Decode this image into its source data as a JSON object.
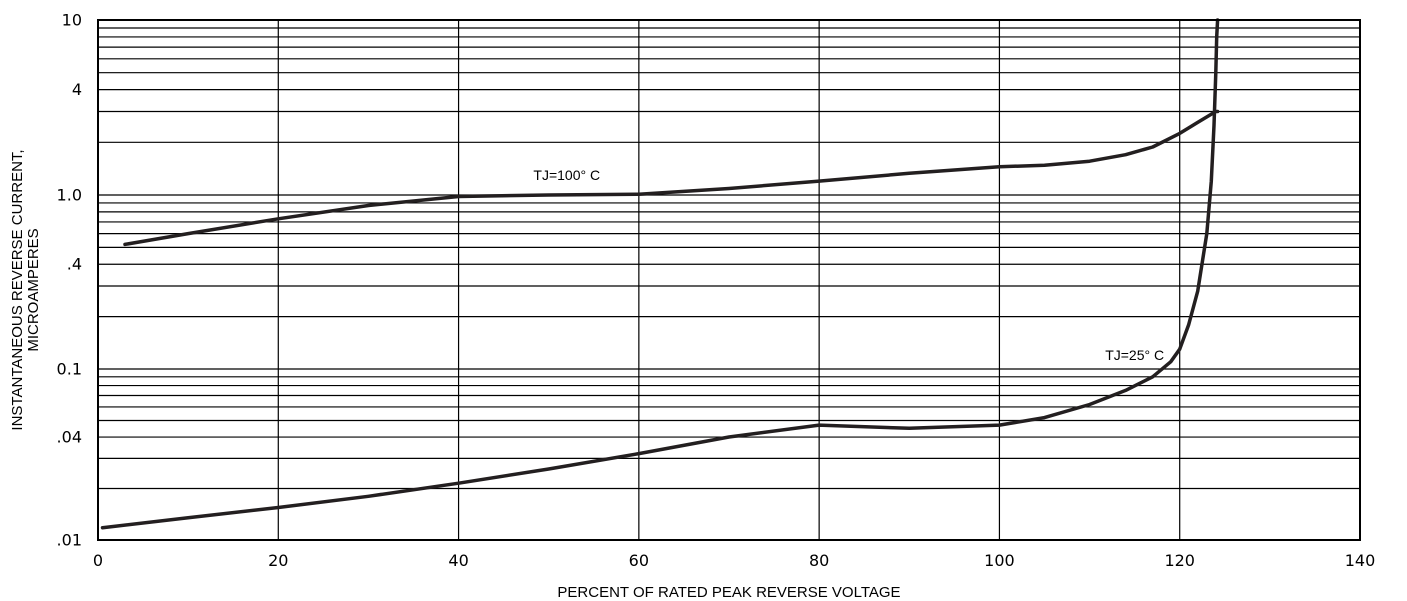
{
  "chart_data": {
    "type": "line",
    "xlabel": "PERCENT OF RATED PEAK REVERSE VOLTAGE",
    "ylabel_lines": [
      "INSTANTANEOUS REVERSE CURRENT,",
      "MICROAMPERES"
    ],
    "xlim": [
      0,
      140
    ],
    "ylim": [
      0.01,
      10
    ],
    "y_scale": "log",
    "grid": true,
    "x_ticks": [
      0,
      20,
      40,
      60,
      80,
      100,
      120,
      140
    ],
    "x_tick_labels": [
      "0",
      "20",
      "40",
      "60",
      "80",
      "100",
      "120",
      "140"
    ],
    "y_ticks": [
      10,
      4,
      1,
      0.4,
      0.1,
      0.04,
      0.01
    ],
    "y_tick_labels": [
      "10",
      "4",
      "1.0",
      ".4",
      "0.1",
      ".04",
      ".01"
    ],
    "series": [
      {
        "name": "TJ=100° C",
        "color": "#231f20",
        "x": [
          3,
          10,
          20,
          30,
          40,
          50,
          60,
          70,
          80,
          90,
          100,
          105,
          110,
          114,
          117,
          120,
          122,
          124,
          124.2
        ],
        "y": [
          0.52,
          0.6,
          0.73,
          0.87,
          0.98,
          1.0,
          1.01,
          1.09,
          1.2,
          1.33,
          1.45,
          1.48,
          1.56,
          1.7,
          1.88,
          2.25,
          2.6,
          3.0,
          3.0
        ]
      },
      {
        "name": "TJ=25° C",
        "color": "#231f20",
        "x": [
          0.5,
          10,
          20,
          30,
          40,
          50,
          60,
          70,
          80,
          90,
          100,
          105,
          110,
          114,
          117,
          119,
          120,
          121,
          122,
          123,
          123.5,
          123.8,
          124,
          124.1,
          124.2
        ],
        "y": [
          0.0118,
          0.0135,
          0.0155,
          0.018,
          0.0215,
          0.026,
          0.032,
          0.04,
          0.047,
          0.045,
          0.047,
          0.052,
          0.062,
          0.075,
          0.09,
          0.11,
          0.13,
          0.18,
          0.28,
          0.6,
          1.2,
          2.5,
          5,
          8,
          10
        ]
      }
    ],
    "annotations": [
      {
        "text": "TJ=100° C",
        "x": 52,
        "y": 1.3
      },
      {
        "text": "TJ=25° C",
        "x": 115,
        "y": 0.12
      }
    ]
  }
}
